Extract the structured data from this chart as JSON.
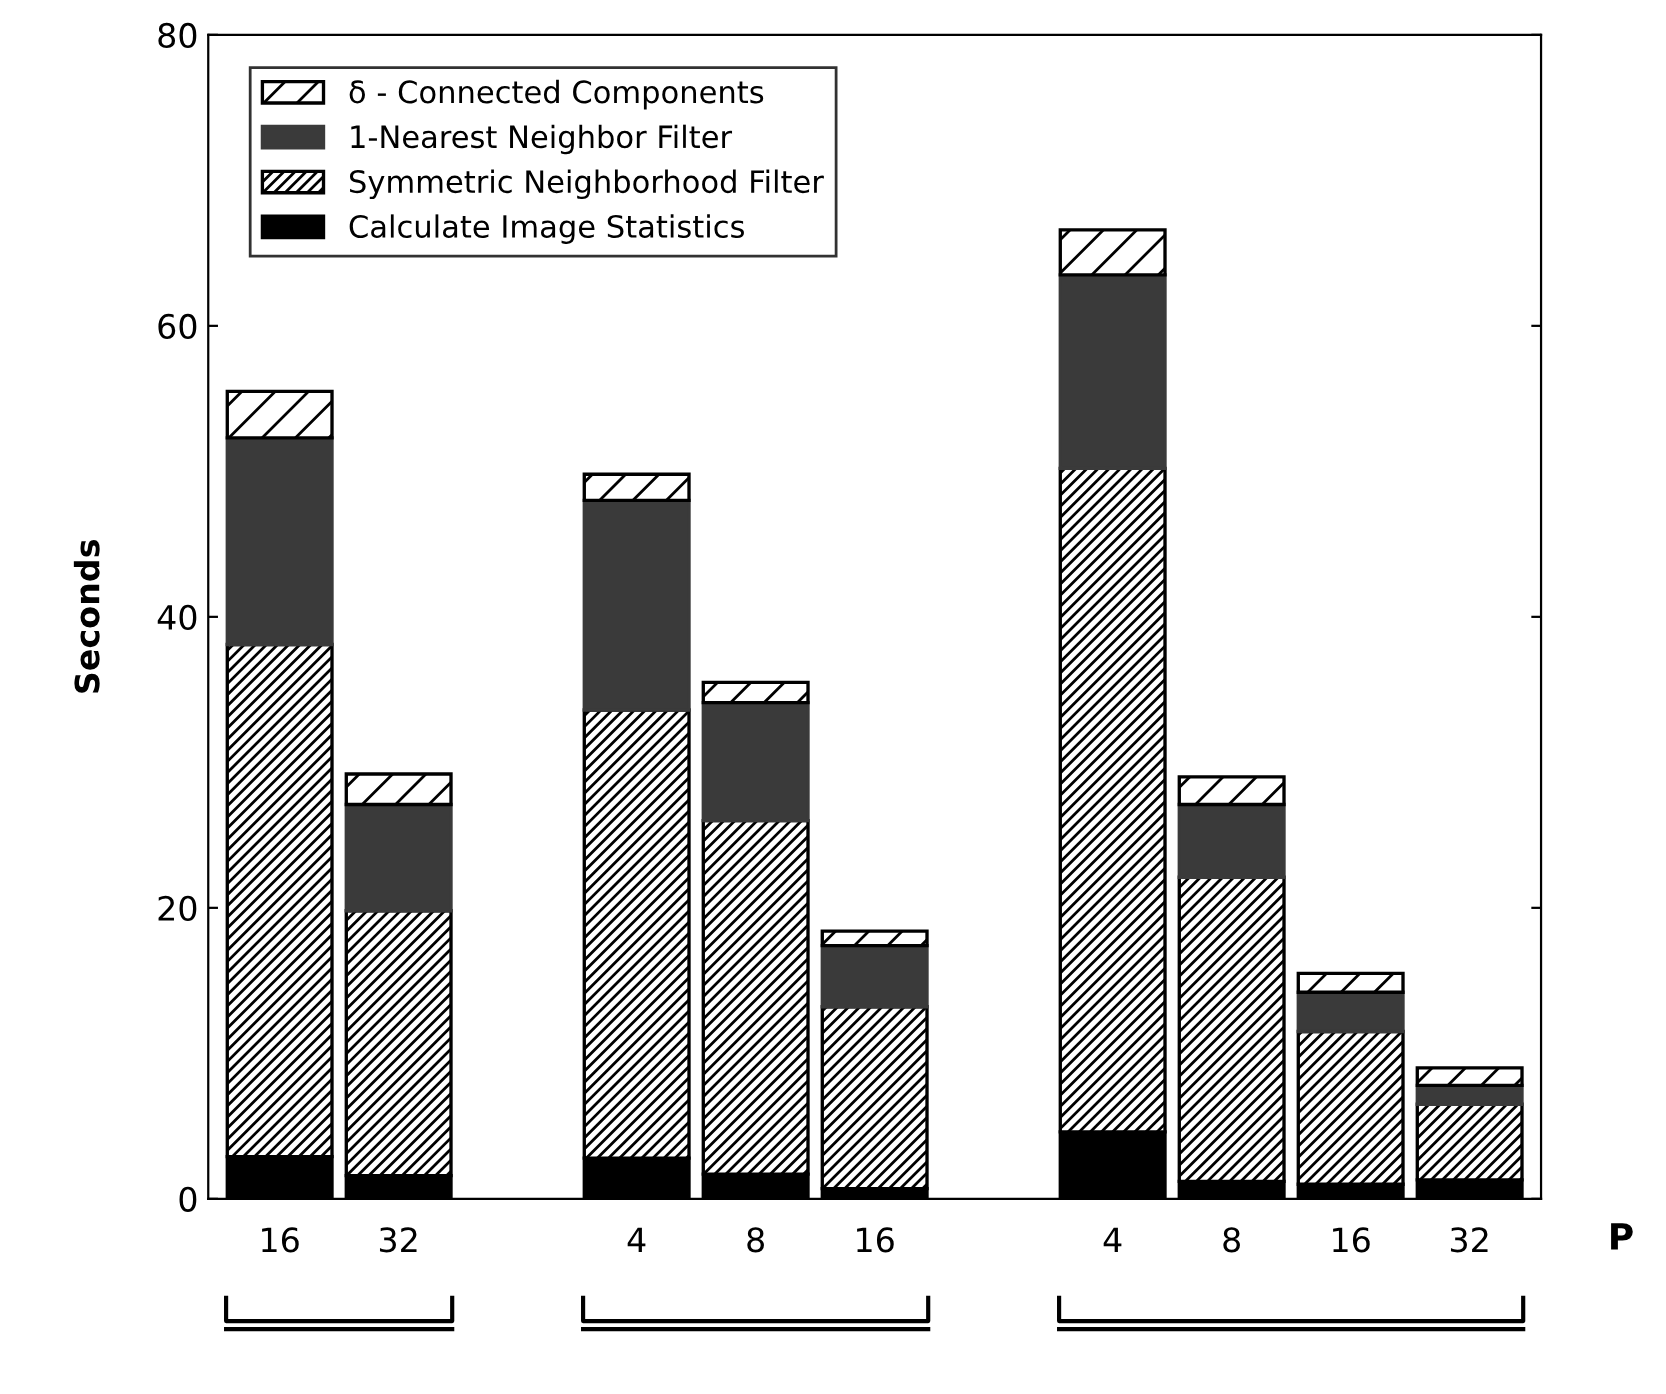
{
  "chart_data": {
    "type": "bar",
    "stacked": true,
    "ylabel": "Seconds",
    "xlabel": "P",
    "categories": [
      "16",
      "32",
      null,
      "4",
      "8",
      "16",
      null,
      "4",
      "8",
      "16",
      "32"
    ],
    "series": [
      {
        "name": "Calculate Image Statistics",
        "color": "#000000",
        "values": [
          2.9,
          1.6,
          null,
          2.8,
          1.7,
          0.7,
          null,
          4.6,
          1.2,
          1.0,
          1.3
        ]
      },
      {
        "name": "Symmetric Neighborhood Filter",
        "color": "#000000",
        "values": [
          35.2,
          18.2,
          null,
          30.8,
          24.3,
          12.5,
          null,
          45.6,
          20.9,
          10.5,
          5.2
        ]
      },
      {
        "name": "1-Nearest Neighbor Filter",
        "color": "#3a3a3a",
        "values": [
          14.2,
          7.3,
          null,
          14.4,
          8.1,
          4.2,
          null,
          13.3,
          5.0,
          2.7,
          1.3
        ]
      },
      {
        "name": "δ - Connected Components",
        "color": "#000000",
        "values": [
          3.2,
          2.1,
          null,
          1.8,
          1.4,
          1.0,
          null,
          3.1,
          1.9,
          1.3,
          1.2
        ]
      }
    ],
    "ylim": [
      0,
      80
    ],
    "yticks": [
      0,
      20,
      40,
      60,
      80
    ],
    "grid": false,
    "legend": "top left"
  }
}
